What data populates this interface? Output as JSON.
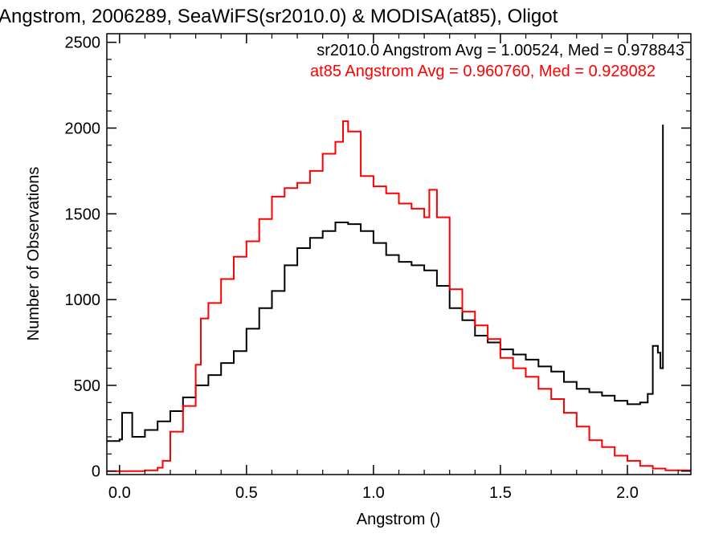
{
  "chart_data": {
    "type": "line",
    "title": "Angstrom, 2006289, SeaWiFS(sr2010.0) & MODISA(at85), Oligot",
    "xlabel": "Angstrom ()",
    "ylabel": "Number of Observations",
    "xlim": [
      -0.05,
      2.25
    ],
    "ylim": [
      -20,
      2550
    ],
    "xticks": [
      0.0,
      0.5,
      1.0,
      1.5,
      2.0
    ],
    "xtick_labels": [
      "0.0",
      "0.5",
      "1.0",
      "1.5",
      "2.0"
    ],
    "yticks": [
      0,
      500,
      1000,
      1500,
      2000,
      2500
    ],
    "ytick_labels": [
      "0",
      "500",
      "1000",
      "1500",
      "2000",
      "2500"
    ],
    "grid": false,
    "legend_position": "top-right",
    "series": [
      {
        "name": "sr2010.0",
        "color": "#000000",
        "label_text": "sr2010.0 Angstrom Avg = 1.00524, Med = 0.978843",
        "x": [
          -0.05,
          0.0,
          0.01,
          0.05,
          0.1,
          0.15,
          0.2,
          0.25,
          0.3,
          0.35,
          0.4,
          0.45,
          0.5,
          0.55,
          0.6,
          0.65,
          0.7,
          0.75,
          0.8,
          0.85,
          0.9,
          0.95,
          1.0,
          1.05,
          1.1,
          1.15,
          1.2,
          1.25,
          1.3,
          1.35,
          1.4,
          1.45,
          1.5,
          1.55,
          1.6,
          1.65,
          1.7,
          1.75,
          1.8,
          1.85,
          1.9,
          1.95,
          2.0,
          2.05,
          2.08,
          2.1,
          2.12,
          2.13,
          2.14
        ],
        "y": [
          175,
          185,
          340,
          200,
          240,
          290,
          350,
          430,
          500,
          560,
          630,
          700,
          830,
          950,
          1050,
          1200,
          1300,
          1360,
          1400,
          1450,
          1440,
          1400,
          1330,
          1260,
          1220,
          1200,
          1170,
          1080,
          950,
          880,
          790,
          750,
          710,
          680,
          650,
          610,
          580,
          520,
          480,
          460,
          440,
          410,
          390,
          400,
          450,
          730,
          690,
          600,
          2020
        ]
      },
      {
        "name": "at85",
        "color": "#ff0000",
        "label_text": "at85 Angstrom Avg = 0.960760, Med = 0.928082",
        "x": [
          -0.05,
          0.0,
          0.05,
          0.1,
          0.15,
          0.17,
          0.2,
          0.25,
          0.3,
          0.32,
          0.35,
          0.4,
          0.45,
          0.5,
          0.55,
          0.6,
          0.65,
          0.7,
          0.75,
          0.8,
          0.85,
          0.88,
          0.9,
          0.95,
          1.0,
          1.05,
          1.1,
          1.15,
          1.2,
          1.22,
          1.25,
          1.3,
          1.35,
          1.4,
          1.45,
          1.5,
          1.55,
          1.6,
          1.65,
          1.7,
          1.75,
          1.8,
          1.85,
          1.9,
          1.95,
          2.0,
          2.05,
          2.1,
          2.15,
          2.25
        ],
        "y": [
          0,
          0,
          0,
          5,
          20,
          60,
          230,
          380,
          620,
          890,
          980,
          1120,
          1250,
          1340,
          1470,
          1600,
          1650,
          1680,
          1750,
          1850,
          1920,
          2040,
          1980,
          1720,
          1660,
          1620,
          1560,
          1530,
          1480,
          1640,
          1480,
          1060,
          930,
          850,
          770,
          660,
          600,
          550,
          480,
          420,
          340,
          260,
          180,
          140,
          90,
          60,
          30,
          15,
          5,
          0
        ]
      }
    ]
  }
}
